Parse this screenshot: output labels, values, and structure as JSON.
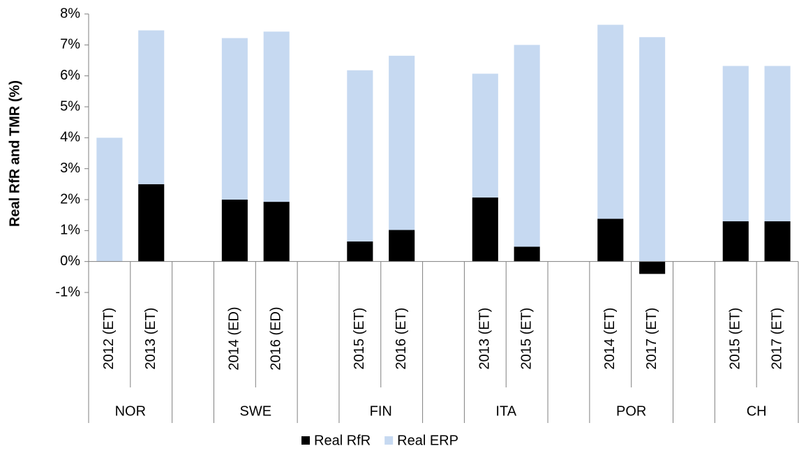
{
  "chart_data": {
    "type": "stacked-bar",
    "y_label": "Real RfR and TMR (%)",
    "categories": [
      "2012 (ET)",
      "2013 (ET)",
      null,
      "2014 (ED)",
      "2016 (ED)",
      null,
      "2015 (ET)",
      "2016 (ET)",
      null,
      "2013 (ET)",
      "2015 (ET)",
      null,
      "2014 (ET)",
      "2017 (ET)",
      null,
      "2015 (ET)",
      "2017 (ET)"
    ],
    "groups": [
      "NOR",
      "NOR",
      null,
      "SWE",
      "SWE",
      null,
      "FIN",
      "FIN",
      null,
      "ITA",
      "ITA",
      null,
      "POR",
      "POR",
      null,
      "CH",
      "CH"
    ],
    "series": [
      {
        "name": "Real RfR",
        "color": "#000000",
        "values": [
          0,
          2.5,
          null,
          2.0,
          1.93,
          null,
          0.65,
          1.02,
          null,
          2.07,
          0.48,
          null,
          1.38,
          -0.4,
          null,
          1.3,
          1.3
        ]
      },
      {
        "name": "Real ERP",
        "color": "#c6d9f1",
        "values": [
          4.0,
          4.97,
          null,
          5.22,
          5.5,
          null,
          5.53,
          5.63,
          null,
          4.0,
          6.52,
          null,
          6.27,
          7.25,
          null,
          5.02,
          5.02
        ]
      }
    ],
    "ylim": [
      -1,
      8
    ],
    "yticks": [
      {
        "value": -1,
        "label": "-1%"
      },
      {
        "value": 0,
        "label": "0%"
      },
      {
        "value": 1,
        "label": "1%"
      },
      {
        "value": 2,
        "label": "2%"
      },
      {
        "value": 3,
        "label": "3%"
      },
      {
        "value": 4,
        "label": "4%"
      },
      {
        "value": 5,
        "label": "5%"
      },
      {
        "value": 6,
        "label": "6%"
      },
      {
        "value": 7,
        "label": "7%"
      },
      {
        "value": 8,
        "label": "8%"
      }
    ],
    "legend": "bottom"
  }
}
